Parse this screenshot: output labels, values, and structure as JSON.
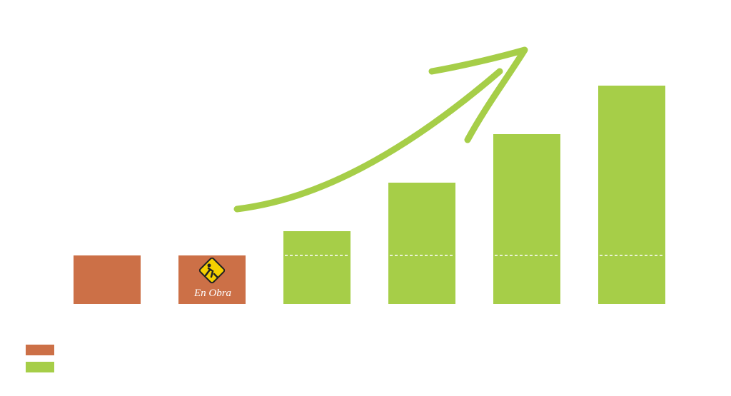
{
  "chart_data": {
    "type": "bar",
    "categories": [
      null,
      null,
      null,
      null,
      null,
      null
    ],
    "series": [
      {
        "color": "#cc7047",
        "values": [
          1,
          1,
          null,
          null,
          null,
          null
        ]
      },
      {
        "color": "#a6ce48",
        "values": [
          null,
          null,
          1.5,
          2.5,
          3.5,
          4.5
        ]
      }
    ],
    "ylim": [
      0,
      5
    ],
    "annotation": "En Obra"
  }
}
